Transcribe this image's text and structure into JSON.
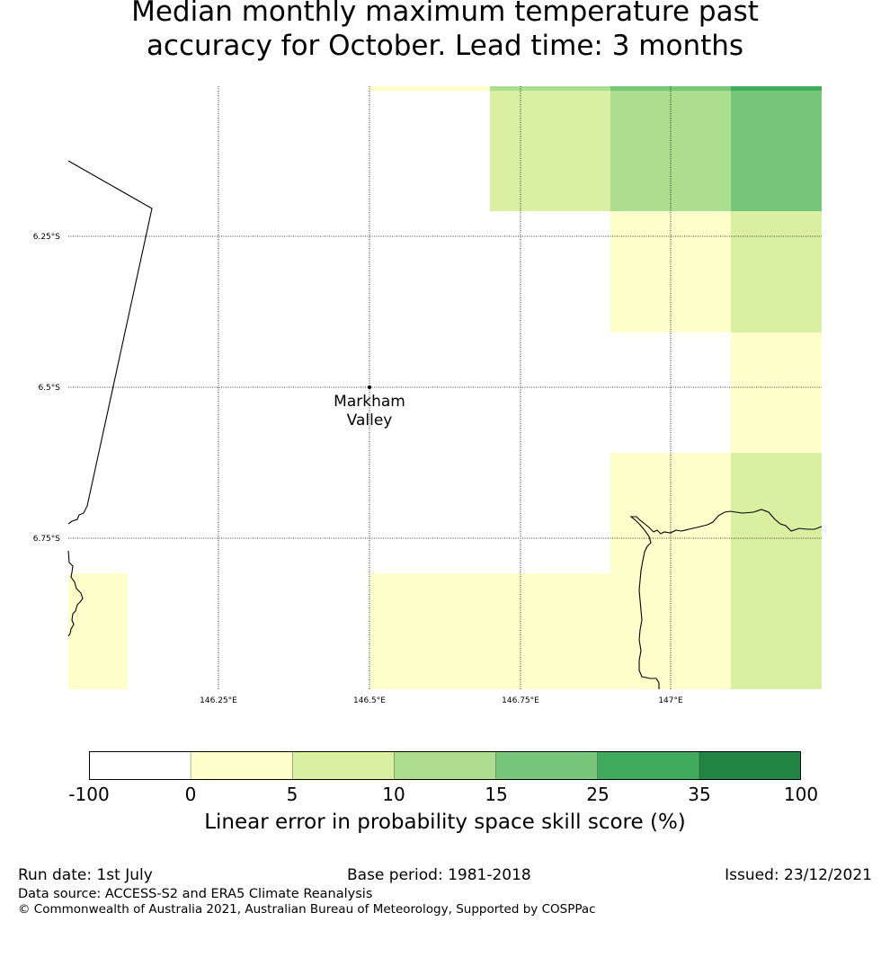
{
  "title_line1": "Median monthly maximum temperature past",
  "title_line2": "accuracy for October. Lead time: 3 months",
  "map": {
    "lat_labels": [
      "6.25°S",
      "6.5°S",
      "6.75°S"
    ],
    "lon_labels": [
      "146.25°E",
      "146.5°E",
      "146.75°E",
      "147°E"
    ],
    "place": {
      "name_line1": "Markham",
      "name_line2": "Valley"
    }
  },
  "legend": {
    "ticks": [
      "-100",
      "0",
      "5",
      "10",
      "15",
      "25",
      "35",
      "100"
    ],
    "colors": [
      "#ffffff",
      "#ffffcc",
      "#d9f0a3",
      "#addd8e",
      "#78c679",
      "#41ab5d",
      "#238443"
    ],
    "label": "Linear error in probability space skill score (%)"
  },
  "footer": {
    "run_date": "Run date: 1st July",
    "base_period": "Base period: 1981-2018",
    "issued": "Issued: 23/12/2021",
    "data_source": "Data source: ACCESS-S2 and ERA5 Climate Reanalysis",
    "copyright": "© Commonwealth of Australia 2021, Australian Bureau of Meteorology, Supported by COSPPac"
  }
}
